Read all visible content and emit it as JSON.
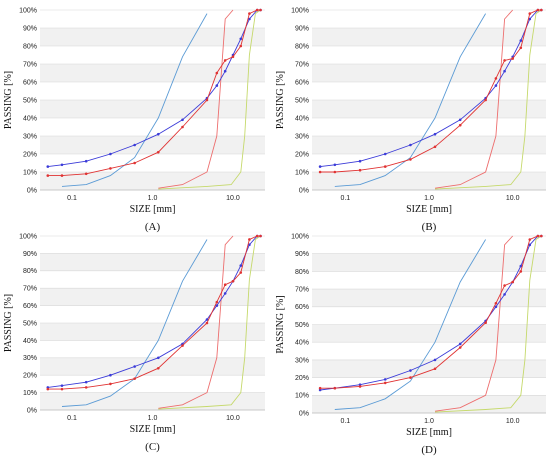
{
  "chart_data": [
    {
      "type": "line",
      "panel_label": "(A)",
      "xlabel": "SIZE [mm]",
      "ylabel": "PASSING [%]",
      "xscale": "log",
      "xlim": [
        0.04,
        25
      ],
      "ylim": [
        0,
        100
      ],
      "x_ticks": [
        "0.1",
        "1.0",
        "10.0"
      ],
      "y_ticks": [
        "0%",
        "10%",
        "20%",
        "30%",
        "40%",
        "50%",
        "60%",
        "70%",
        "80%",
        "90%",
        "100%"
      ],
      "grid": "horizontal bands",
      "series": [
        {
          "color": "#5b9bd5",
          "points": [
            [
              0.075,
              2
            ],
            [
              0.15,
              3
            ],
            [
              0.3,
              8
            ],
            [
              0.6,
              18
            ],
            [
              1.18,
              40
            ],
            [
              2.36,
              74
            ],
            [
              4.75,
              98
            ]
          ]
        },
        {
          "color": "#ed6e6e",
          "points": [
            [
              1.18,
              1
            ],
            [
              2.36,
              3
            ],
            [
              4.75,
              10
            ],
            [
              6.3,
              30
            ],
            [
              8,
              95
            ],
            [
              10,
              100
            ]
          ]
        },
        {
          "color": "#c5d96b",
          "points": [
            [
              1.18,
              0.5
            ],
            [
              4.75,
              2
            ],
            [
              9.5,
              3
            ],
            [
              12.5,
              10
            ],
            [
              14,
              30
            ],
            [
              16,
              75
            ],
            [
              19,
              98
            ],
            [
              22,
              100
            ]
          ]
        },
        {
          "color": "#3b3bd8",
          "marker": true,
          "points": [
            [
              0.05,
              13
            ],
            [
              0.075,
              14
            ],
            [
              0.15,
              16
            ],
            [
              0.3,
              20
            ],
            [
              0.6,
              25
            ],
            [
              1.18,
              31
            ],
            [
              2.36,
              39
            ],
            [
              4.75,
              51
            ],
            [
              6.3,
              58
            ],
            [
              8,
              66
            ],
            [
              10,
              75
            ],
            [
              12.5,
              84
            ],
            [
              16,
              95
            ],
            [
              20,
              100
            ],
            [
              22,
              100
            ]
          ]
        },
        {
          "color": "#e03333",
          "marker": true,
          "points": [
            [
              0.05,
              8
            ],
            [
              0.075,
              8
            ],
            [
              0.15,
              9
            ],
            [
              0.3,
              12
            ],
            [
              0.6,
              15
            ],
            [
              1.18,
              21
            ],
            [
              2.36,
              35
            ],
            [
              4.75,
              50
            ],
            [
              6.3,
              65
            ],
            [
              8,
              72
            ],
            [
              10,
              74
            ],
            [
              12.5,
              80
            ],
            [
              16,
              98
            ],
            [
              20,
              100
            ],
            [
              22,
              100
            ]
          ]
        }
      ]
    },
    {
      "type": "line",
      "panel_label": "(B)",
      "xlabel": "SIZE [mm]",
      "ylabel": "PASSING [%]",
      "xscale": "log",
      "xlim": [
        0.04,
        25
      ],
      "ylim": [
        0,
        100
      ],
      "x_ticks": [
        "0.1",
        "1.0",
        "10.0"
      ],
      "y_ticks": [
        "0%",
        "10%",
        "20%",
        "30%",
        "40%",
        "50%",
        "60%",
        "70%",
        "80%",
        "90%",
        "100%"
      ],
      "grid": "horizontal bands",
      "series": [
        {
          "color": "#5b9bd5",
          "points": [
            [
              0.075,
              2
            ],
            [
              0.15,
              3
            ],
            [
              0.3,
              8
            ],
            [
              0.6,
              18
            ],
            [
              1.18,
              40
            ],
            [
              2.36,
              74
            ],
            [
              4.75,
              98
            ]
          ]
        },
        {
          "color": "#ed6e6e",
          "points": [
            [
              1.18,
              1
            ],
            [
              2.36,
              3
            ],
            [
              4.75,
              10
            ],
            [
              6.3,
              30
            ],
            [
              8,
              95
            ],
            [
              10,
              100
            ]
          ]
        },
        {
          "color": "#c5d96b",
          "points": [
            [
              1.18,
              0.5
            ],
            [
              4.75,
              2
            ],
            [
              9.5,
              3
            ],
            [
              12.5,
              10
            ],
            [
              14,
              30
            ],
            [
              16,
              75
            ],
            [
              19,
              98
            ],
            [
              22,
              100
            ]
          ]
        },
        {
          "color": "#3b3bd8",
          "marker": true,
          "points": [
            [
              0.05,
              13
            ],
            [
              0.075,
              14
            ],
            [
              0.15,
              16
            ],
            [
              0.3,
              20
            ],
            [
              0.6,
              25
            ],
            [
              1.18,
              31
            ],
            [
              2.36,
              39
            ],
            [
              4.75,
              51
            ],
            [
              6.3,
              58
            ],
            [
              8,
              66
            ],
            [
              10,
              74
            ],
            [
              12.5,
              83
            ],
            [
              16,
              95
            ],
            [
              20,
              100
            ],
            [
              22,
              100
            ]
          ]
        },
        {
          "color": "#e03333",
          "marker": true,
          "points": [
            [
              0.05,
              10
            ],
            [
              0.075,
              10
            ],
            [
              0.15,
              11
            ],
            [
              0.3,
              13
            ],
            [
              0.6,
              17
            ],
            [
              1.18,
              24
            ],
            [
              2.36,
              36
            ],
            [
              4.75,
              50
            ],
            [
              6.3,
              62
            ],
            [
              8,
              72
            ],
            [
              10,
              73
            ],
            [
              12.5,
              79
            ],
            [
              16,
              98
            ],
            [
              20,
              100
            ],
            [
              22,
              100
            ]
          ]
        }
      ]
    },
    {
      "type": "line",
      "panel_label": "(C)",
      "xlabel": "SIZE [mm]",
      "ylabel": "PASSING [%]",
      "xscale": "log",
      "xlim": [
        0.04,
        25
      ],
      "ylim": [
        0,
        100
      ],
      "x_ticks": [
        "0.1",
        "1.0",
        "10.0"
      ],
      "y_ticks": [
        "0%",
        "10%",
        "20%",
        "30%",
        "40%",
        "50%",
        "60%",
        "70%",
        "80%",
        "90%",
        "100%"
      ],
      "grid": "horizontal bands",
      "series": [
        {
          "color": "#5b9bd5",
          "points": [
            [
              0.075,
              2
            ],
            [
              0.15,
              3
            ],
            [
              0.3,
              8
            ],
            [
              0.6,
              18
            ],
            [
              1.18,
              40
            ],
            [
              2.36,
              74
            ],
            [
              4.75,
              98
            ]
          ]
        },
        {
          "color": "#ed6e6e",
          "points": [
            [
              1.18,
              1
            ],
            [
              2.36,
              3
            ],
            [
              4.75,
              10
            ],
            [
              6.3,
              30
            ],
            [
              8,
              95
            ],
            [
              10,
              100
            ]
          ]
        },
        {
          "color": "#c5d96b",
          "points": [
            [
              1.18,
              0.5
            ],
            [
              4.75,
              2
            ],
            [
              9.5,
              3
            ],
            [
              12.5,
              10
            ],
            [
              14,
              30
            ],
            [
              16,
              75
            ],
            [
              19,
              98
            ],
            [
              22,
              100
            ]
          ]
        },
        {
          "color": "#3b3bd8",
          "marker": true,
          "points": [
            [
              0.05,
              13
            ],
            [
              0.075,
              14
            ],
            [
              0.15,
              16
            ],
            [
              0.3,
              20
            ],
            [
              0.6,
              25
            ],
            [
              1.18,
              30
            ],
            [
              2.36,
              38
            ],
            [
              4.75,
              52
            ],
            [
              6.3,
              60
            ],
            [
              8,
              67
            ],
            [
              10,
              74
            ],
            [
              12.5,
              83
            ],
            [
              16,
              95
            ],
            [
              20,
              100
            ],
            [
              22,
              100
            ]
          ]
        },
        {
          "color": "#e03333",
          "marker": true,
          "points": [
            [
              0.05,
              12
            ],
            [
              0.075,
              12
            ],
            [
              0.15,
              13
            ],
            [
              0.3,
              15
            ],
            [
              0.6,
              18
            ],
            [
              1.18,
              24
            ],
            [
              2.36,
              37
            ],
            [
              4.75,
              50
            ],
            [
              6.3,
              62
            ],
            [
              8,
              72
            ],
            [
              10,
              74
            ],
            [
              12.5,
              79
            ],
            [
              16,
              98
            ],
            [
              20,
              100
            ],
            [
              22,
              100
            ]
          ]
        }
      ]
    },
    {
      "type": "line",
      "panel_label": "(D)",
      "xlabel": "SIZE [mm]",
      "ylabel": "PASSING [%]",
      "xscale": "log",
      "xlim": [
        0.04,
        25
      ],
      "ylim": [
        0,
        100
      ],
      "x_ticks": [
        "0.1",
        "1.0",
        "10.0"
      ],
      "y_ticks": [
        "0%",
        "10%",
        "20%",
        "30%",
        "40%",
        "50%",
        "60%",
        "70%",
        "80%",
        "90%",
        "100%"
      ],
      "grid": "horizontal bands",
      "series": [
        {
          "color": "#5b9bd5",
          "points": [
            [
              0.075,
              2
            ],
            [
              0.15,
              3
            ],
            [
              0.3,
              8
            ],
            [
              0.6,
              18
            ],
            [
              1.18,
              40
            ],
            [
              2.36,
              74
            ],
            [
              4.75,
              98
            ]
          ]
        },
        {
          "color": "#ed6e6e",
          "points": [
            [
              1.18,
              1
            ],
            [
              2.36,
              3
            ],
            [
              4.75,
              10
            ],
            [
              6.3,
              30
            ],
            [
              8,
              95
            ],
            [
              10,
              100
            ]
          ]
        },
        {
          "color": "#c5d96b",
          "points": [
            [
              1.18,
              0.5
            ],
            [
              4.75,
              2
            ],
            [
              9.5,
              3
            ],
            [
              12.5,
              10
            ],
            [
              14,
              30
            ],
            [
              16,
              75
            ],
            [
              19,
              98
            ],
            [
              22,
              100
            ]
          ]
        },
        {
          "color": "#3b3bd8",
          "marker": true,
          "points": [
            [
              0.05,
              13
            ],
            [
              0.075,
              14
            ],
            [
              0.15,
              16
            ],
            [
              0.3,
              19
            ],
            [
              0.6,
              24
            ],
            [
              1.18,
              30
            ],
            [
              2.36,
              39
            ],
            [
              4.75,
              52
            ],
            [
              6.3,
              60
            ],
            [
              8,
              67
            ],
            [
              10,
              74
            ],
            [
              12.5,
              83
            ],
            [
              16,
              95
            ],
            [
              20,
              100
            ],
            [
              22,
              100
            ]
          ]
        },
        {
          "color": "#e03333",
          "marker": true,
          "points": [
            [
              0.05,
              14
            ],
            [
              0.075,
              14
            ],
            [
              0.15,
              15
            ],
            [
              0.3,
              17
            ],
            [
              0.6,
              20
            ],
            [
              1.18,
              25
            ],
            [
              2.36,
              37
            ],
            [
              4.75,
              51
            ],
            [
              6.3,
              62
            ],
            [
              8,
              72
            ],
            [
              10,
              74
            ],
            [
              12.5,
              80
            ],
            [
              16,
              98
            ],
            [
              20,
              100
            ],
            [
              22,
              100
            ]
          ]
        }
      ]
    }
  ]
}
